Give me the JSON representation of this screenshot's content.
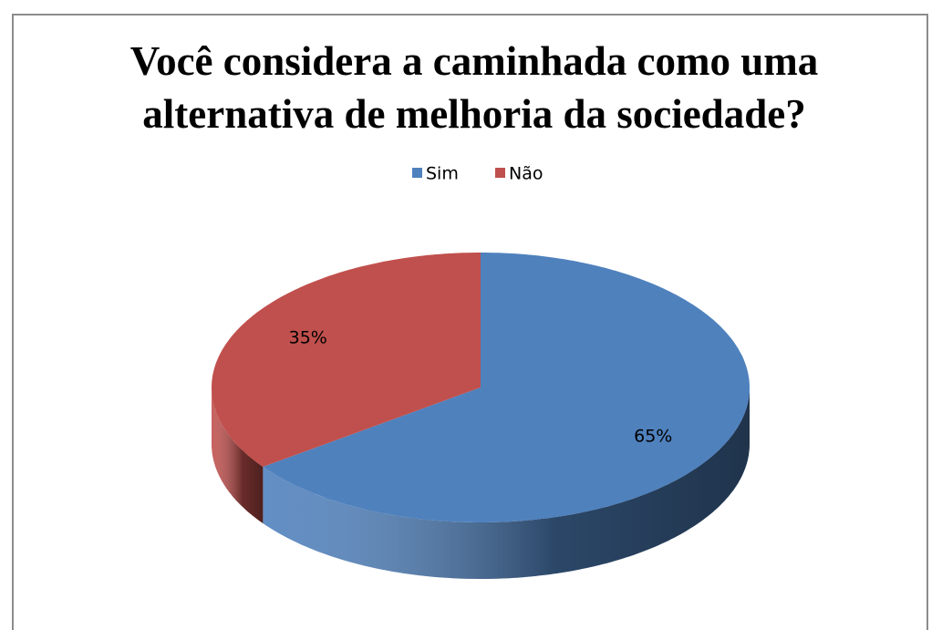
{
  "chart_data": {
    "type": "pie",
    "title": "Você considera a caminhada como uma alternativa de melhoria da sociedade?",
    "categories": [
      "Sim",
      "Não"
    ],
    "values": [
      65,
      35
    ],
    "value_labels": [
      "65%",
      "35%"
    ],
    "colors": [
      "#4f81bd",
      "#c0504d"
    ],
    "legend": "top"
  }
}
